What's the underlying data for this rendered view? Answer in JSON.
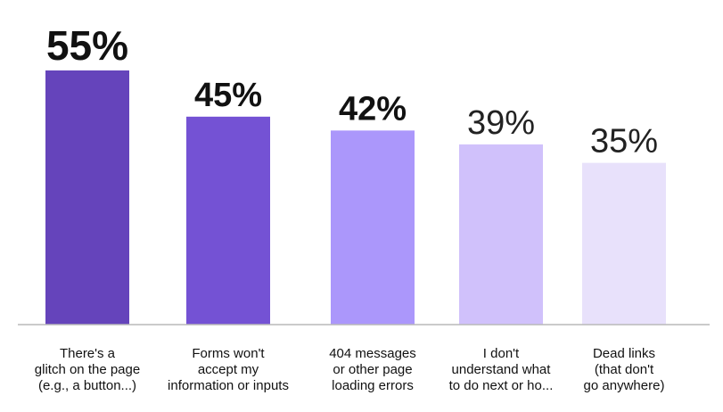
{
  "chart_data": {
    "type": "bar",
    "categories": [
      "There's a glitch on the page (e.g., a button...)",
      "Forms won't accept my information or inputs",
      "404 messages or other page loading errors",
      "I don't understand what to do next or ho...",
      "Dead links (that don't go anywhere)"
    ],
    "category_lines": [
      [
        "There's a",
        "glitch on the page",
        "(e.g., a button...)"
      ],
      [
        "Forms won't",
        "accept my",
        "information or inputs"
      ],
      [
        "404 messages",
        "or other page",
        "loading errors"
      ],
      [
        "I don't",
        "understand what",
        "to do next or ho..."
      ],
      [
        "Dead links",
        "(that don't",
        "go anywhere)"
      ]
    ],
    "values": [
      55,
      45,
      42,
      39,
      35
    ],
    "value_labels": [
      "55%",
      "45%",
      "42%",
      "39%",
      "35%"
    ],
    "value_label_bold": [
      true,
      true,
      true,
      false,
      false
    ],
    "colors": [
      "#6544bb",
      "#7452d4",
      "#ab97fb",
      "#d0c1fb",
      "#e8e1fb"
    ],
    "ylim": [
      0,
      55
    ],
    "grid": false,
    "title": "",
    "xlabel": "",
    "ylabel": ""
  }
}
